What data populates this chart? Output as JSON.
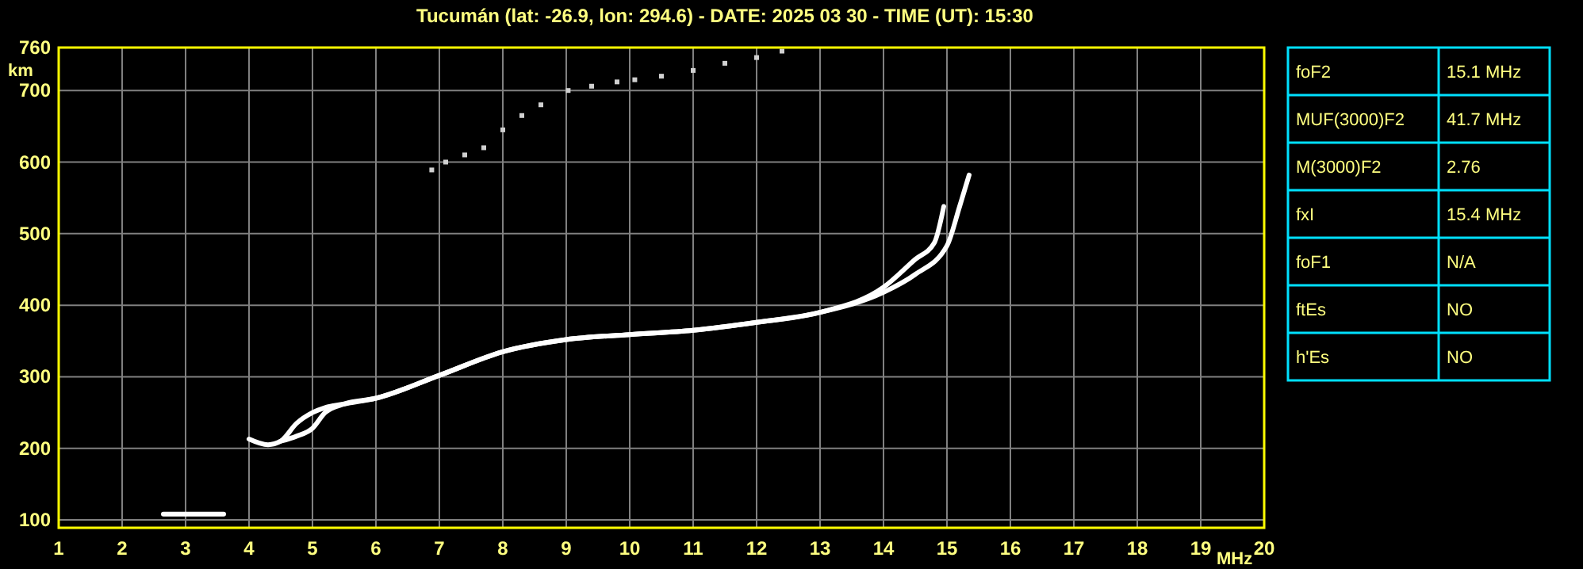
{
  "chart_data": [
    {
      "type": "line",
      "title": "Tucumán (lat: -26.9, lon: 294.6) - DATE: 2025 03 30 - TIME (UT): 15:30",
      "xlabel": "MHz",
      "ylabel": "km",
      "xlim": [
        1,
        20
      ],
      "ylim": [
        89,
        760
      ],
      "xticks": [
        1,
        2,
        3,
        4,
        5,
        6,
        7,
        8,
        9,
        10,
        11,
        12,
        13,
        14,
        15,
        16,
        17,
        18,
        19,
        20
      ],
      "yticks": [
        100,
        200,
        300,
        400,
        500,
        600,
        700,
        760
      ],
      "grid": true,
      "line_style": "solid",
      "series": [
        {
          "color": "#ffffff",
          "x": [
            4.0,
            4.3,
            4.5,
            4.75,
            5.0,
            5.2,
            5.5,
            6,
            7,
            8,
            9,
            10,
            11,
            12,
            13,
            14,
            14.5,
            14.8,
            14.95
          ],
          "values": [
            213,
            205,
            210,
            235,
            250,
            257,
            262,
            270,
            302,
            335,
            352,
            359,
            365,
            376,
            390,
            425,
            464,
            487,
            538
          ]
        },
        {
          "color": "#ffffff",
          "x": [
            4.5,
            4.75,
            5.0,
            5.2,
            5.5,
            6,
            7,
            8,
            9,
            10,
            11,
            12,
            13,
            14,
            14.5,
            15.0,
            15.2,
            15.35
          ],
          "values": [
            210,
            217,
            228,
            250,
            262,
            270,
            302,
            335,
            352,
            359,
            365,
            376,
            390,
            418,
            443,
            483,
            538,
            582
          ]
        },
        {
          "color": "#ffffff",
          "x": [
            2.65,
            3.6
          ],
          "values": [
            108,
            108
          ]
        },
        {
          "type": "scatter",
          "marker": "square",
          "color": "#d0d0d0",
          "x": [
            6.88,
            7.1,
            7.4,
            7.7,
            8.0,
            8.3,
            8.6,
            9.03,
            9.4,
            9.8,
            10.08,
            10.5,
            11.0,
            11.5,
            12.0,
            12.4
          ],
          "values": [
            589,
            600,
            610,
            620,
            645,
            665,
            680,
            700,
            706,
            712,
            715,
            720,
            728,
            738,
            746,
            755
          ]
        }
      ]
    },
    {
      "type": "other",
      "categories": [
        "foF2",
        "MUF(3000)F2",
        "M(3000)F2",
        "fxI",
        "foF1",
        "ftEs",
        "h'Es"
      ],
      "value_labels": [
        "15.1 MHz",
        "41.7 MHz",
        "2.76",
        "15.4 MHz",
        "N/A",
        "NO",
        "NO"
      ]
    }
  ]
}
